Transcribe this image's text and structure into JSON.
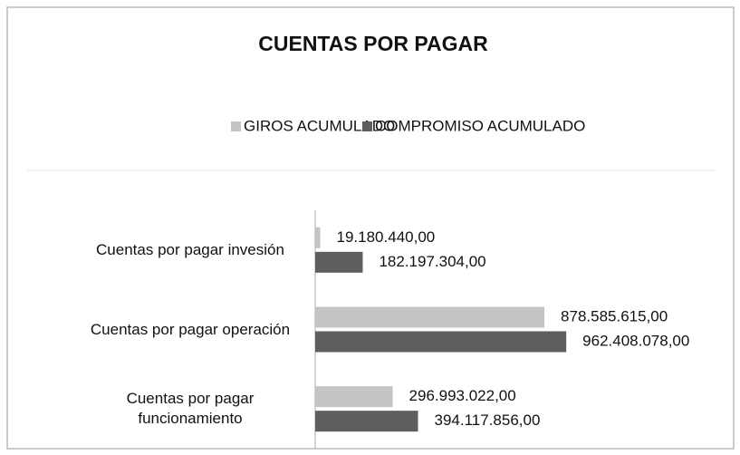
{
  "chart_data": {
    "type": "bar",
    "orientation": "horizontal",
    "title": "CUENTAS POR PAGAR",
    "categories": [
      "Cuentas por pagar invesión",
      "Cuentas por pagar operación",
      "Cuentas por pagar funcionamiento"
    ],
    "series": [
      {
        "name": "GIROS ACUMULADO",
        "color": "#c4c4c4",
        "values": [
          19180440,
          878585615,
          296993022
        ],
        "value_labels": [
          "19.180.440,00",
          "878.585.615,00",
          "296.993.022,00"
        ]
      },
      {
        "name": "COMPROMISO ACUMULADO",
        "color": "#5e5e5e",
        "values": [
          182197304,
          962408078,
          394117856
        ],
        "value_labels": [
          "182.197.304,00",
          "962.408.078,00",
          "394.117.856,00"
        ]
      }
    ],
    "xlim": [
      0,
      1000000000
    ],
    "legend": "top"
  }
}
